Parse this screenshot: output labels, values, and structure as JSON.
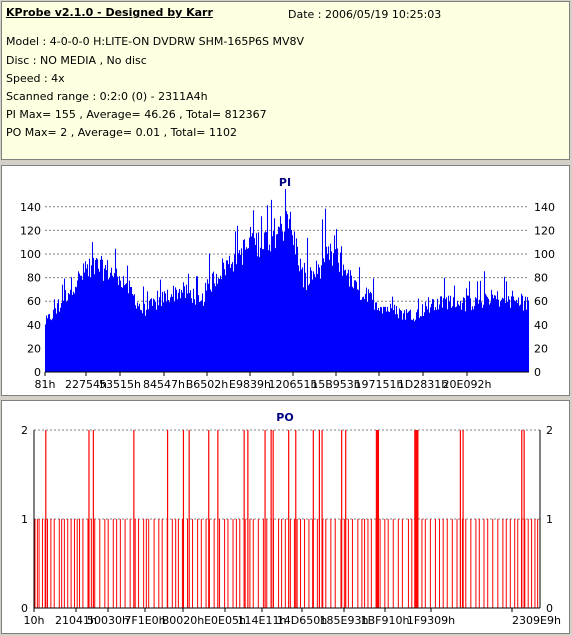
{
  "header": {
    "title": "KProbe v2.1.0 - Designed by Karr",
    "date": "Date : 2006/05/19 10:25:03",
    "lines": [
      "Model : 4-0-0-0 H:LITE-ON DVDRW SHM-165P6S MV8V",
      "Disc : NO MEDIA , No disc",
      "Speed : 4x",
      "Scanned range : 0:2:0 (0) - 2311A4h",
      "PI Max= 155 , Average= 46.26 , Total= 812367",
      "PO Max= 2 , Average= 0.01 , Total= 1102"
    ]
  },
  "colors": {
    "pi_fill": "#0000ff",
    "po_fill": "#ff0000",
    "grid": "#808080",
    "background": "#ffffff"
  },
  "chart_data": [
    {
      "type": "area",
      "title": "PI",
      "ylim": [
        0,
        150
      ],
      "yticks": [
        0,
        20,
        40,
        60,
        80,
        100,
        120,
        140
      ],
      "xticks": [
        "81h",
        "22754h",
        "53515h",
        "84547h",
        "B6502h",
        "E9839h",
        "120651h",
        "15B953h",
        "197151h",
        "1D2831h",
        "20E092h"
      ],
      "grid": true,
      "max": 155,
      "average": 46.26,
      "total": 812367,
      "profile": [
        [
          0,
          45
        ],
        [
          4,
          58
        ],
        [
          8,
          78
        ],
        [
          12,
          90
        ],
        [
          16,
          96
        ],
        [
          20,
          92
        ],
        [
          24,
          84
        ],
        [
          28,
          66
        ],
        [
          30,
          56
        ],
        [
          34,
          62
        ],
        [
          38,
          70
        ],
        [
          42,
          74
        ],
        [
          46,
          70
        ],
        [
          48,
          60
        ],
        [
          50,
          76
        ],
        [
          54,
          92
        ],
        [
          58,
          102
        ],
        [
          62,
          112
        ],
        [
          66,
          118
        ],
        [
          70,
          124
        ],
        [
          72,
          130
        ],
        [
          75,
          135
        ],
        [
          78,
          112
        ],
        [
          80,
          82
        ],
        [
          84,
          92
        ],
        [
          88,
          106
        ],
        [
          92,
          98
        ],
        [
          96,
          76
        ],
        [
          100,
          68
        ],
        [
          103,
          62
        ],
        [
          106,
          58
        ],
        [
          110,
          54
        ],
        [
          114,
          52
        ],
        [
          118,
          58
        ],
        [
          122,
          62
        ],
        [
          126,
          66
        ],
        [
          130,
          62
        ],
        [
          134,
          64
        ],
        [
          138,
          68
        ],
        [
          142,
          66
        ],
        [
          146,
          64
        ],
        [
          150,
          62
        ]
      ]
    },
    {
      "type": "bar",
      "title": "PO",
      "ylim": [
        0,
        2
      ],
      "yticks": [
        0,
        1,
        2
      ],
      "xticks": [
        "10h",
        "21041h",
        "50030h",
        "7F1E0h",
        "B0020h",
        "E0E05h",
        "114E11h",
        "14D650h",
        "185E93h",
        "1BF910h",
        "1F9309h",
        "2309E9h"
      ],
      "grid": true,
      "max": 2,
      "average": 0.01,
      "total": 1102,
      "x_range": [
        0,
        150
      ],
      "ones": [
        0.3,
        1,
        1.5,
        2.5,
        3.3,
        4,
        5,
        6,
        7.5,
        8.2,
        9,
        10,
        11,
        12,
        12.8,
        13.5,
        14.5,
        16,
        17,
        18,
        19.5,
        21,
        22,
        23.5,
        24.5,
        25.6,
        27,
        28.5,
        30,
        31,
        32.5,
        33.3,
        34,
        35.6,
        37,
        38,
        39.5,
        41,
        42,
        42.8,
        44,
        45.5,
        47,
        48.5,
        49.6,
        51,
        52,
        53.4,
        55,
        56.5,
        57.5,
        59,
        60,
        61,
        62.6,
        64,
        65,
        66.5,
        68,
        69,
        70.3,
        71,
        72.5,
        73.4,
        74.5,
        76,
        77.2,
        78,
        79,
        80.2,
        81.5,
        82.6,
        84,
        85.6,
        86.5,
        88,
        89.3,
        91,
        92,
        93.2,
        94.4,
        96,
        97.2,
        98,
        99,
        100,
        101.4,
        102.6,
        104,
        105,
        106.5,
        108,
        109.2,
        111,
        112,
        113.5,
        115,
        116,
        117.5,
        119,
        120.2,
        121.3,
        122.5,
        124,
        125.4,
        127,
        128,
        129.5,
        131,
        132,
        133.4,
        134.5,
        136,
        137.5,
        139,
        140,
        141.2,
        142.5,
        143.4,
        144.5,
        145.5,
        146.5,
        147.5,
        148.5,
        149.3
      ],
      "twos": [
        3.5,
        16.3,
        17.6,
        29.6,
        39.6,
        44.3,
        46,
        51.8,
        54.5,
        62.3,
        63.4,
        68.5,
        70.3,
        70.9,
        75.5,
        77.6,
        82.8,
        84.6,
        85.4,
        91.2,
        92.4,
        101.5,
        101.8,
        102.1,
        112.9,
        113.2,
        113.5,
        113.8,
        126.4,
        127.2,
        144.6,
        145.3
      ]
    }
  ]
}
